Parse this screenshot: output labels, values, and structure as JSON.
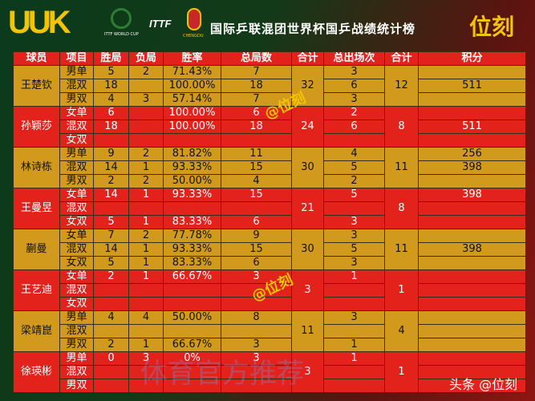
{
  "header": {
    "logo": "UUK",
    "logo_cup": "ITTF WORLD CUP",
    "logo_ittf": "ITTF",
    "logo_city": "CHENGDU",
    "title": "国际乒联混团世界杯国乒战绩统计榜",
    "brand": "位刻"
  },
  "table": {
    "columns": [
      "球员",
      "项目",
      "胜局",
      "负局",
      "胜率",
      "总局数",
      "合计",
      "总出场次",
      "合计",
      "积分"
    ],
    "groups": [
      {
        "player": "王楚钦",
        "games_total": 32,
        "apps_total": 12,
        "rows": [
          {
            "event": "男单",
            "won": 5,
            "lost": 2,
            "rate": "71.43%",
            "games": 7,
            "apps": 3,
            "points": null
          },
          {
            "event": "混双",
            "won": 18,
            "lost": null,
            "rate": "100.00%",
            "games": 18,
            "apps": 6,
            "points": 511
          },
          {
            "event": "男双",
            "won": 4,
            "lost": 3,
            "rate": "57.14%",
            "games": 7,
            "apps": 3,
            "points": null
          }
        ]
      },
      {
        "player": "孙颖莎",
        "games_total": 24,
        "apps_total": 8,
        "rows": [
          {
            "event": "女单",
            "won": 6,
            "lost": null,
            "rate": "100.00%",
            "games": 6,
            "apps": 2,
            "points": null
          },
          {
            "event": "混双",
            "won": 18,
            "lost": null,
            "rate": "100.00%",
            "games": 18,
            "apps": 6,
            "points": 511
          },
          {
            "event": "女双",
            "won": null,
            "lost": null,
            "rate": null,
            "games": null,
            "apps": null,
            "points": null
          }
        ]
      },
      {
        "player": "林诗栋",
        "games_total": 30,
        "apps_total": 11,
        "rows": [
          {
            "event": "男单",
            "won": 9,
            "lost": 2,
            "rate": "81.82%",
            "games": 11,
            "apps": 4,
            "points": 256
          },
          {
            "event": "混双",
            "won": 14,
            "lost": 1,
            "rate": "93.33%",
            "games": 15,
            "apps": 5,
            "points": 398
          },
          {
            "event": "男双",
            "won": 2,
            "lost": 2,
            "rate": "50.00%",
            "games": 4,
            "apps": 2,
            "points": null
          }
        ]
      },
      {
        "player": "王曼昱",
        "games_total": 21,
        "apps_total": 8,
        "rows": [
          {
            "event": "女单",
            "won": 14,
            "lost": 1,
            "rate": "93.33%",
            "games": 15,
            "apps": 5,
            "points": 398
          },
          {
            "event": "混双",
            "won": null,
            "lost": null,
            "rate": null,
            "games": null,
            "apps": null,
            "points": null
          },
          {
            "event": "女双",
            "won": 5,
            "lost": 1,
            "rate": "83.33%",
            "games": 6,
            "apps": 3,
            "points": null
          }
        ]
      },
      {
        "player": "蒯曼",
        "games_total": 30,
        "apps_total": 11,
        "rows": [
          {
            "event": "女单",
            "won": 7,
            "lost": 2,
            "rate": "77.78%",
            "games": 9,
            "apps": 3,
            "points": null
          },
          {
            "event": "混双",
            "won": 14,
            "lost": 1,
            "rate": "93.33%",
            "games": 15,
            "apps": 5,
            "points": 398
          },
          {
            "event": "女双",
            "won": 5,
            "lost": 1,
            "rate": "83.33%",
            "games": 6,
            "apps": 3,
            "points": null
          }
        ]
      },
      {
        "player": "王艺迪",
        "games_total": 3,
        "apps_total": 1,
        "rows": [
          {
            "event": "女单",
            "won": 2,
            "lost": 1,
            "rate": "66.67%",
            "games": 3,
            "apps": 1,
            "points": null
          },
          {
            "event": "混双",
            "won": null,
            "lost": null,
            "rate": null,
            "games": null,
            "apps": null,
            "points": null
          },
          {
            "event": "女双",
            "won": null,
            "lost": null,
            "rate": null,
            "games": null,
            "apps": null,
            "points": null
          }
        ]
      },
      {
        "player": "梁靖崑",
        "games_total": 11,
        "apps_total": 4,
        "rows": [
          {
            "event": "男单",
            "won": 4,
            "lost": 4,
            "rate": "50.00%",
            "games": 8,
            "apps": 3,
            "points": null
          },
          {
            "event": "混双",
            "won": null,
            "lost": null,
            "rate": null,
            "games": null,
            "apps": null,
            "points": null
          },
          {
            "event": "男双",
            "won": 2,
            "lost": 1,
            "rate": "66.67%",
            "games": 3,
            "apps": 1,
            "points": null
          }
        ]
      },
      {
        "player": "徐瑛彬",
        "games_total": 3,
        "apps_total": 1,
        "rows": [
          {
            "event": "男单",
            "won": 0,
            "lost": 3,
            "rate": "0%",
            "games": 3,
            "apps": 1,
            "points": null
          },
          {
            "event": "混双",
            "won": null,
            "lost": null,
            "rate": null,
            "games": null,
            "apps": null,
            "points": null
          },
          {
            "event": "男双",
            "won": null,
            "lost": null,
            "rate": null,
            "games": null,
            "apps": null,
            "points": null
          }
        ]
      }
    ]
  },
  "watermarks": {
    "mark_1": "@位刻",
    "mark_2": "@位刻",
    "faint": "体育官方推荐",
    "footer": "头条 @位刻"
  }
}
